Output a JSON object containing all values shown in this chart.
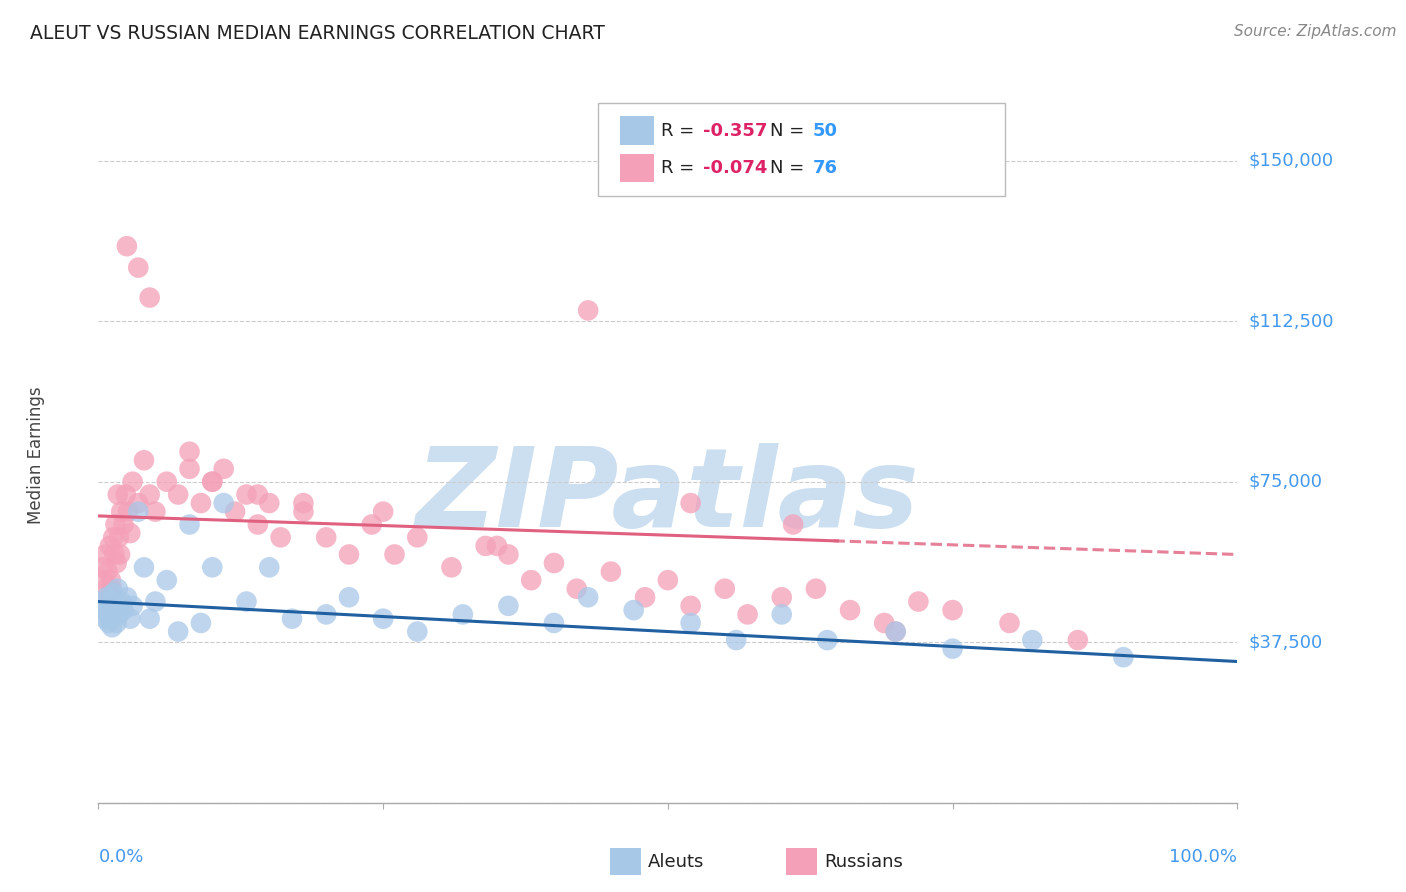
{
  "title": "ALEUT VS RUSSIAN MEDIAN EARNINGS CORRELATION CHART",
  "source": "Source: ZipAtlas.com",
  "ylabel": "Median Earnings",
  "xlim": [
    0,
    1
  ],
  "ylim": [
    0,
    162500
  ],
  "yticks": [
    0,
    37500,
    75000,
    112500,
    150000
  ],
  "ytick_labels": [
    "",
    "$37,500",
    "$75,000",
    "$112,500",
    "$150,000"
  ],
  "aleut_color": "#a8c8e8",
  "russian_color": "#f4a0b8",
  "aleut_line_color": "#2060a0",
  "russian_line_color": "#e06080",
  "background_color": "#ffffff",
  "grid_color": "#cccccc",
  "legend_box_color": "#dddddd",
  "right_label_color": "#4499ee",
  "title_color": "#222222",
  "source_color": "#888888",
  "ylabel_color": "#444444",
  "bottom_label_color": "#4499ee",
  "aleut_R": -0.357,
  "aleut_N": 50,
  "russian_R": -0.074,
  "russian_N": 76,
  "watermark_color": "#ccdff0",
  "watermark_text": "ZIPatlas",
  "aleut_x": [
    0.004,
    0.005,
    0.006,
    0.007,
    0.008,
    0.009,
    0.01,
    0.011,
    0.012,
    0.013,
    0.014,
    0.015,
    0.016,
    0.017,
    0.018,
    0.02,
    0.022,
    0.025,
    0.028,
    0.03,
    0.035,
    0.04,
    0.045,
    0.05,
    0.06,
    0.07,
    0.08,
    0.09,
    0.1,
    0.11,
    0.13,
    0.15,
    0.17,
    0.2,
    0.22,
    0.25,
    0.28,
    0.32,
    0.36,
    0.4,
    0.43,
    0.47,
    0.52,
    0.56,
    0.6,
    0.64,
    0.7,
    0.75,
    0.82,
    0.9
  ],
  "aleut_y": [
    47000,
    45000,
    43000,
    48000,
    44000,
    42000,
    46000,
    43000,
    41000,
    49000,
    44000,
    46000,
    42000,
    50000,
    44000,
    47000,
    45000,
    48000,
    43000,
    46000,
    68000,
    55000,
    43000,
    47000,
    52000,
    40000,
    65000,
    42000,
    55000,
    70000,
    47000,
    55000,
    43000,
    44000,
    48000,
    43000,
    40000,
    44000,
    46000,
    42000,
    48000,
    45000,
    42000,
    38000,
    44000,
    38000,
    40000,
    36000,
    38000,
    34000
  ],
  "russian_x": [
    0.004,
    0.005,
    0.006,
    0.007,
    0.008,
    0.009,
    0.01,
    0.011,
    0.012,
    0.013,
    0.014,
    0.015,
    0.016,
    0.017,
    0.018,
    0.019,
    0.02,
    0.022,
    0.024,
    0.026,
    0.028,
    0.03,
    0.035,
    0.04,
    0.045,
    0.05,
    0.06,
    0.07,
    0.08,
    0.09,
    0.1,
    0.11,
    0.12,
    0.13,
    0.14,
    0.15,
    0.16,
    0.18,
    0.2,
    0.22,
    0.24,
    0.26,
    0.28,
    0.31,
    0.34,
    0.36,
    0.38,
    0.4,
    0.42,
    0.45,
    0.48,
    0.5,
    0.52,
    0.55,
    0.57,
    0.6,
    0.63,
    0.66,
    0.69,
    0.72,
    0.025,
    0.035,
    0.045,
    0.08,
    0.1,
    0.14,
    0.18,
    0.25,
    0.35,
    0.43,
    0.52,
    0.61,
    0.7,
    0.75,
    0.8,
    0.86
  ],
  "russian_y": [
    55000,
    52000,
    58000,
    50000,
    54000,
    48000,
    60000,
    52000,
    50000,
    62000,
    58000,
    65000,
    56000,
    72000,
    62000,
    58000,
    68000,
    65000,
    72000,
    68000,
    63000,
    75000,
    70000,
    80000,
    72000,
    68000,
    75000,
    72000,
    82000,
    70000,
    75000,
    78000,
    68000,
    72000,
    65000,
    70000,
    62000,
    68000,
    62000,
    58000,
    65000,
    58000,
    62000,
    55000,
    60000,
    58000,
    52000,
    56000,
    50000,
    54000,
    48000,
    52000,
    46000,
    50000,
    44000,
    48000,
    50000,
    45000,
    42000,
    47000,
    130000,
    125000,
    118000,
    78000,
    75000,
    72000,
    70000,
    68000,
    60000,
    115000,
    70000,
    65000,
    40000,
    45000,
    42000,
    38000
  ]
}
